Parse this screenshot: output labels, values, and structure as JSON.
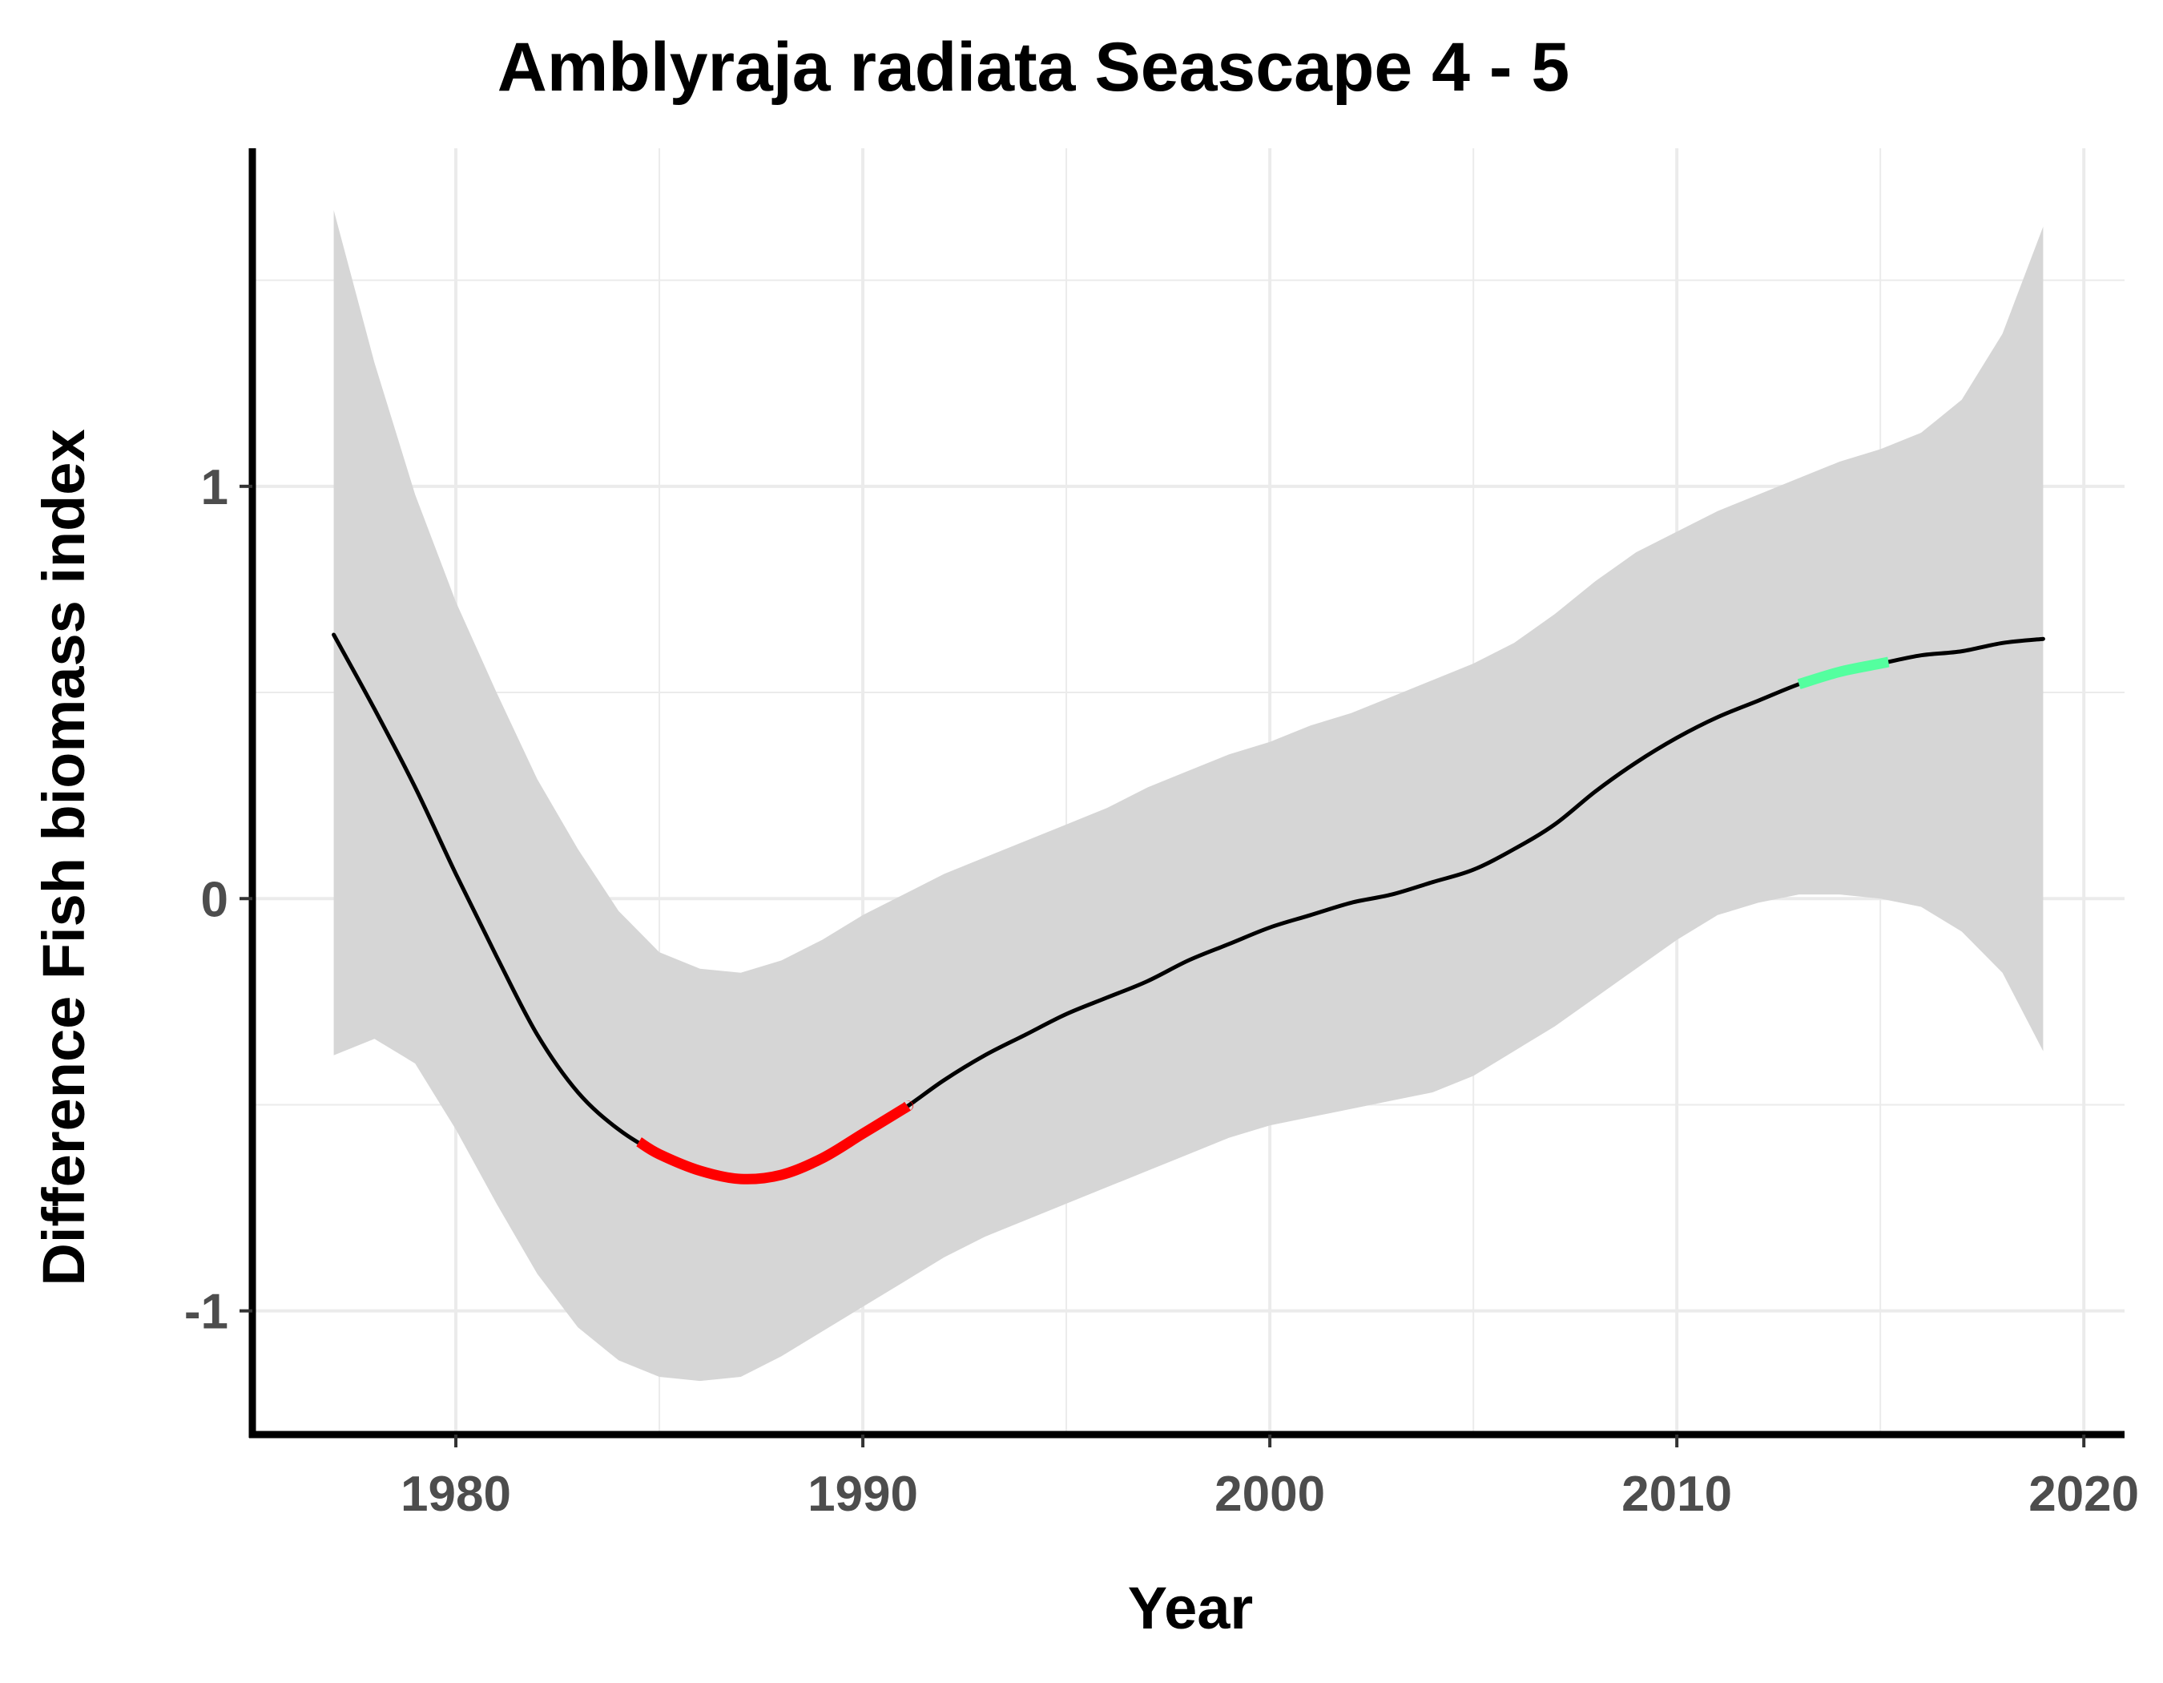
{
  "chart_data": {
    "type": "line",
    "title": "Amblyraja radiata Seascape 4 - 5",
    "xlabel": "Year",
    "ylabel": "Difference Fish biomass index",
    "xlim": [
      1975,
      2021
    ],
    "ylim": [
      -1.3,
      1.82
    ],
    "x_ticks": [
      1980,
      1990,
      2000,
      2010,
      2020
    ],
    "x_tick_labels": [
      "1980",
      "1990",
      "2000",
      "2010",
      "2020"
    ],
    "x_minor_ticks": [
      1985,
      1995,
      2005,
      2015
    ],
    "y_ticks": [
      -1,
      0,
      1
    ],
    "y_tick_labels": [
      "-1",
      "0",
      "1"
    ],
    "y_minor_ticks": [
      -0.5,
      0.5,
      1.5
    ],
    "grid": true,
    "colors": {
      "line": "#000000",
      "ribbon": "#d6d6d6",
      "decreasing": "#ff0000",
      "increasing": "#54ff9f",
      "grid": "#ebebeb",
      "axis": "#000000",
      "tick_label": "#4d4d4d"
    },
    "series": [
      {
        "x": [
          1977,
          1978,
          1979,
          1980,
          1981,
          1982,
          1983,
          1984,
          1985,
          1986,
          1987,
          1988,
          1989,
          1990,
          1991,
          1992,
          1993,
          1994,
          1995,
          1996,
          1997,
          1998,
          1999,
          2000,
          2001,
          2002,
          2003,
          2004,
          2005,
          2006,
          2007,
          2008,
          2009,
          2010,
          2011,
          2012,
          2013,
          2014,
          2015,
          2016,
          2017,
          2018,
          2019
        ],
        "y": [
          0.64,
          0.46,
          0.27,
          0.06,
          -0.14,
          -0.33,
          -0.47,
          -0.56,
          -0.62,
          -0.66,
          -0.68,
          -0.67,
          -0.63,
          -0.57,
          -0.51,
          -0.44,
          -0.38,
          -0.33,
          -0.28,
          -0.24,
          -0.2,
          -0.15,
          -0.11,
          -0.07,
          -0.04,
          -0.01,
          0.01,
          0.04,
          0.07,
          0.12,
          0.18,
          0.26,
          0.33,
          0.39,
          0.44,
          0.48,
          0.52,
          0.55,
          0.57,
          0.59,
          0.6,
          0.62,
          0.63
        ]
      }
    ],
    "confidence_band": {
      "x": [
        1977,
        1978,
        1979,
        1980,
        1981,
        1982,
        1983,
        1984,
        1985,
        1986,
        1987,
        1988,
        1989,
        1990,
        1991,
        1992,
        1993,
        1994,
        1995,
        1996,
        1997,
        1998,
        1999,
        2000,
        2001,
        2002,
        2003,
        2004,
        2005,
        2006,
        2007,
        2008,
        2009,
        2010,
        2011,
        2012,
        2013,
        2014,
        2015,
        2016,
        2017,
        2018,
        2019
      ],
      "upper": [
        1.67,
        1.3,
        0.98,
        0.72,
        0.5,
        0.29,
        0.12,
        -0.03,
        -0.13,
        -0.17,
        -0.18,
        -0.15,
        -0.1,
        -0.04,
        0.01,
        0.06,
        0.1,
        0.14,
        0.18,
        0.22,
        0.27,
        0.31,
        0.35,
        0.38,
        0.42,
        0.45,
        0.49,
        0.53,
        0.57,
        0.62,
        0.69,
        0.77,
        0.84,
        0.89,
        0.94,
        0.98,
        1.02,
        1.06,
        1.09,
        1.13,
        1.21,
        1.37,
        1.63
      ],
      "lower": [
        -0.38,
        -0.34,
        -0.4,
        -0.56,
        -0.74,
        -0.91,
        -1.04,
        -1.12,
        -1.16,
        -1.17,
        -1.16,
        -1.11,
        -1.05,
        -0.99,
        -0.93,
        -0.87,
        -0.82,
        -0.78,
        -0.74,
        -0.7,
        -0.66,
        -0.62,
        -0.58,
        -0.55,
        -0.53,
        -0.51,
        -0.49,
        -0.47,
        -0.43,
        -0.37,
        -0.31,
        -0.24,
        -0.17,
        -0.1,
        -0.04,
        -0.01,
        0.01,
        0.01,
        0.0,
        -0.02,
        -0.08,
        -0.18,
        -0.37
      ]
    },
    "highlight_segments": [
      {
        "kind": "decreasing",
        "x_start": 1984.5,
        "x_end": 1991.1,
        "color": "#ff0000"
      },
      {
        "kind": "increasing",
        "x_start": 2013.0,
        "x_end": 2015.2,
        "color": "#54ff9f"
      }
    ]
  }
}
